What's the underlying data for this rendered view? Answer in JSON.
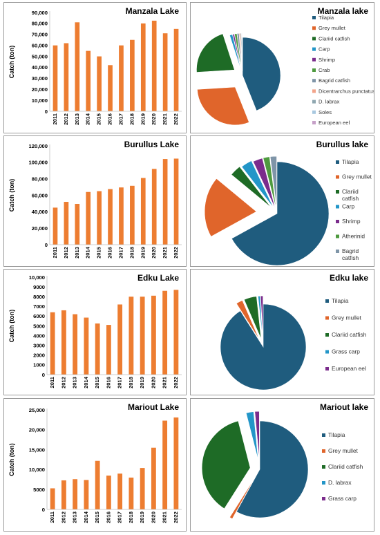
{
  "chart_data": [
    {
      "type": "bar",
      "title": "Manzala Lake",
      "ylabel": "Catch (ton)",
      "categories": [
        "2011",
        "2012",
        "2013",
        "2014",
        "2015",
        "2016",
        "2017",
        "2018",
        "2019",
        "2020",
        "2021",
        "2022"
      ],
      "values": [
        60000,
        62000,
        81000,
        55000,
        50000,
        42000,
        60000,
        65000,
        80000,
        82500,
        71000,
        75000
      ],
      "ylim": [
        0,
        90000
      ],
      "yticks": [
        "0",
        "10,000",
        "20,000",
        "30,000",
        "40,000",
        "50,000",
        "60,000",
        "70,000",
        "80,000",
        "90,000"
      ],
      "bar_color": "#ED7D31",
      "grid": false
    },
    {
      "type": "pie",
      "title": "Manzala lake",
      "labels": [
        "Tilapia",
        "Grey mullet",
        "Clariid catfish",
        "Carp",
        "Shrimp",
        "Crab",
        "Bagrid catfish",
        "Dicentrarchus punctatus",
        "D. labrax",
        "Soles",
        "European eel"
      ],
      "values": [
        44.0,
        30.0,
        21.0,
        1.2,
        0.7,
        1.0,
        0.8,
        0.5,
        0.4,
        0.2,
        0.2
      ],
      "colors": [
        "#1F5C7E",
        "#E0652B",
        "#1E6B26",
        "#2396C8",
        "#7B2C8C",
        "#4E9A3F",
        "#7F95A8",
        "#F2A48A",
        "#8FA7B0",
        "#A8C8E0",
        "#C6A0C8"
      ],
      "legend_position": "right"
    },
    {
      "type": "bar",
      "title": "Burullus Lake",
      "ylabel": "Catch (ton)",
      "categories": [
        "2011",
        "2012",
        "2013",
        "2014",
        "2015",
        "2016",
        "2017",
        "2018",
        "2019",
        "2020",
        "2021",
        "2022"
      ],
      "values": [
        45000,
        52000,
        49500,
        64000,
        65000,
        67500,
        69500,
        71500,
        81000,
        92000,
        104000,
        104500
      ],
      "ylim": [
        0,
        120000
      ],
      "yticks": [
        "0",
        "20,000",
        "40,000",
        "60,000",
        "80,000",
        "100,000",
        "120,000"
      ],
      "bar_color": "#ED7D31",
      "grid": false
    },
    {
      "type": "pie",
      "title": "Burullus lake",
      "labels": [
        "Tilapia",
        "Grey mullet",
        "Clariid catfish",
        "Carp",
        "Shrimp",
        "Atherinid",
        "Bagrid catfish"
      ],
      "values": [
        67.0,
        19.0,
        3.5,
        3.5,
        3.0,
        2.0,
        2.0
      ],
      "colors": [
        "#1F5C7E",
        "#E0652B",
        "#1E6B26",
        "#2396C8",
        "#7B2C8C",
        "#4E9A3F",
        "#7F95A8"
      ],
      "legend_position": "right"
    },
    {
      "type": "bar",
      "title": "Edku Lake",
      "ylabel": "Catch (ton)",
      "categories": [
        "2011",
        "2012",
        "2013",
        "2014",
        "2015",
        "2016",
        "2017",
        "2018",
        "2019",
        "2020",
        "2021",
        "2022"
      ],
      "values": [
        6400,
        6600,
        6200,
        5850,
        5250,
        5100,
        7200,
        8000,
        8000,
        8100,
        8600,
        8700
      ],
      "ylim": [
        0,
        10000
      ],
      "yticks": [
        "0",
        "1000",
        "2000",
        "3000",
        "4000",
        "5000",
        "6000",
        "7000",
        "8000",
        "9000",
        "10,000"
      ],
      "bar_color": "#ED7D31",
      "grid": false
    },
    {
      "type": "pie",
      "title": "Edku lake",
      "labels": [
        "Tilapia",
        "Grey mullet",
        "Clariid catfish",
        "Grass carp",
        "European eel"
      ],
      "values": [
        91.0,
        2.5,
        4.8,
        0.8,
        0.9
      ],
      "colors": [
        "#1F5C7E",
        "#E0652B",
        "#1E6B26",
        "#2396C8",
        "#7B2C8C"
      ],
      "legend_position": "right"
    },
    {
      "type": "bar",
      "title": "Mariout Lake",
      "ylabel": "Catch (ton)",
      "categories": [
        "2011",
        "2012",
        "2013",
        "2014",
        "2015",
        "2016",
        "2017",
        "2018",
        "2019",
        "2020",
        "2021",
        "2022"
      ],
      "values": [
        5300,
        7300,
        7600,
        7400,
        12200,
        8500,
        9000,
        8000,
        10400,
        15500,
        22300,
        23100
      ],
      "ylim": [
        0,
        25000
      ],
      "yticks": [
        "0",
        "5000",
        "10,000",
        "15,000",
        "20,000",
        "25,000"
      ],
      "bar_color": "#ED7D31",
      "grid": false
    },
    {
      "type": "pie",
      "title": "Mariout lake",
      "labels": [
        "Tilapia",
        "Grey mullet",
        "Clariid catfish",
        "D. labrax",
        "Grass carp"
      ],
      "values": [
        58.0,
        1.0,
        37.0,
        2.5,
        1.5
      ],
      "colors": [
        "#1F5C7E",
        "#E0652B",
        "#1E6B26",
        "#2396C8",
        "#7B2C8C"
      ],
      "legend_position": "right"
    }
  ]
}
